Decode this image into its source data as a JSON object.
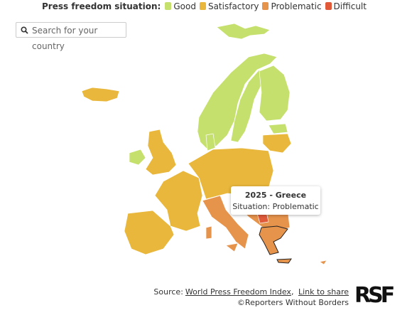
{
  "legend": {
    "title": "Press freedom situation:",
    "items": [
      {
        "label": "Good",
        "color": "#c5e06d"
      },
      {
        "label": "Satisfactory",
        "color": "#e8b73b"
      },
      {
        "label": "Problematic",
        "color": "#e6934c"
      },
      {
        "label": "Difficult",
        "color": "#e05a3a"
      }
    ]
  },
  "search": {
    "placeholder": "Search for your country"
  },
  "tooltip": {
    "title": "2025 - Greece",
    "text": "Situation: Problematic"
  },
  "source": {
    "prefix": "Source:",
    "link1": "World Press Freedom Index",
    "link2": "Link to share",
    "credit": "©Reporters Without Borders"
  },
  "logo": "RSF"
}
